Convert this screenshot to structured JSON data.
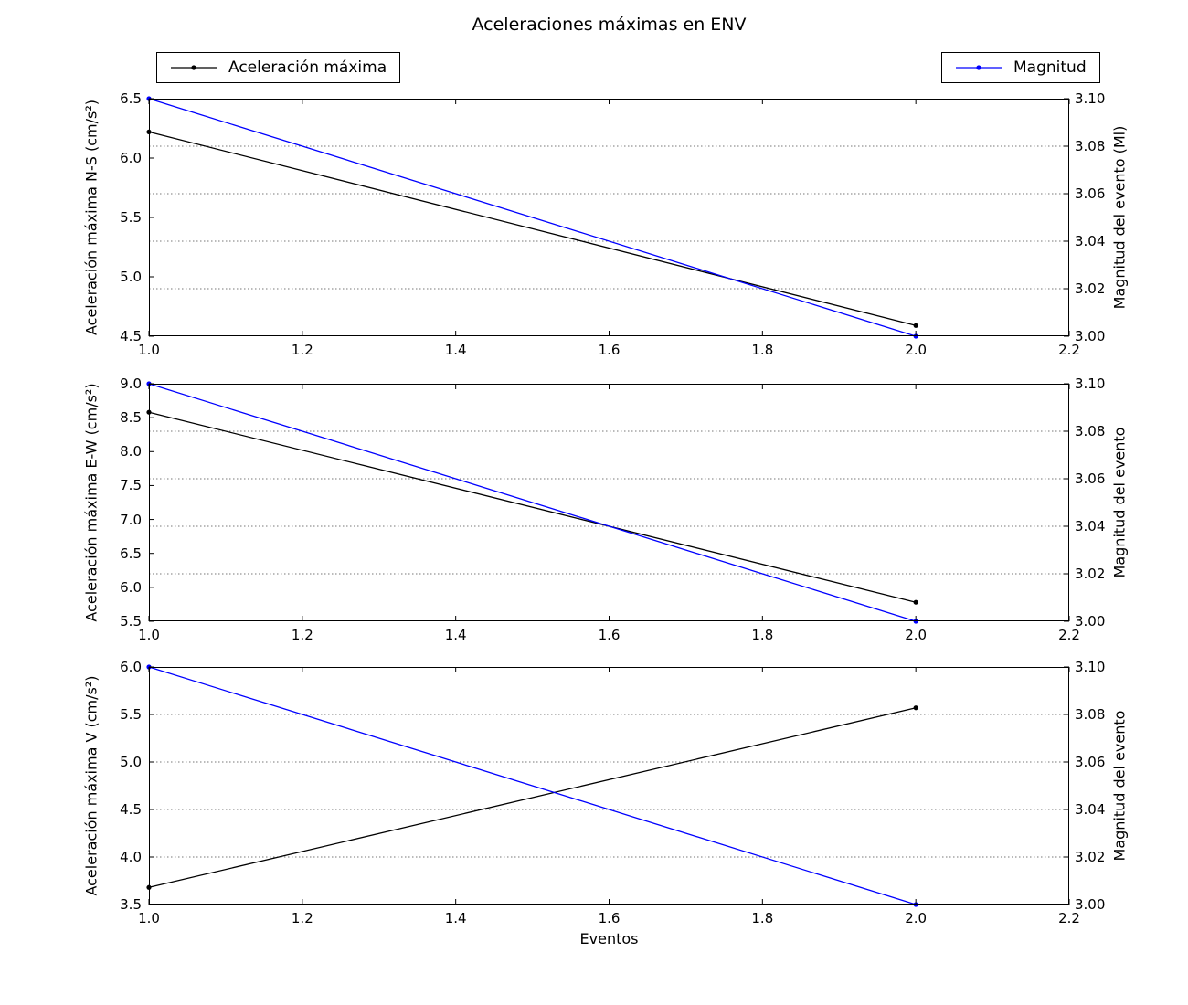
{
  "title": "Aceleraciones máximas en ENV",
  "xlabel": "Eventos",
  "x_tick_labels": [
    "1.0",
    "1.2",
    "1.4",
    "1.6",
    "1.8",
    "2.0",
    "2.2"
  ],
  "colors": {
    "acceleration": "#000000",
    "magnitude": "#0000ff",
    "grid": "#777777",
    "frame": "#000000"
  },
  "legend": [
    {
      "label": "Aceleración máxima",
      "color": "#000000"
    },
    {
      "label": "Magnitud",
      "color": "#0000ff"
    }
  ],
  "chart_data": [
    {
      "type": "line",
      "ylabel_left": "Aceleración máxima N-S (cm/s²)",
      "ylabel_right": "Magnitud del evento (Ml)",
      "xlim": [
        1.0,
        2.2
      ],
      "ylim_left": [
        4.5,
        6.5
      ],
      "ylim_right": [
        3.0,
        3.1
      ],
      "yticks_left": [
        "4.5",
        "5.0",
        "5.5",
        "6.0",
        "6.5"
      ],
      "yticks_right": [
        "3.00",
        "3.02",
        "3.04",
        "3.06",
        "3.08",
        "3.10"
      ],
      "grid_on_right_ticks": [
        3.02,
        3.04,
        3.06,
        3.08
      ],
      "x": [
        1.0,
        2.0
      ],
      "series": [
        {
          "name": "Aceleración máxima",
          "axis": "left",
          "values": [
            6.22,
            4.59
          ],
          "color": "#000000"
        },
        {
          "name": "Magnitud",
          "axis": "right",
          "values": [
            3.1,
            3.0
          ],
          "color": "#0000ff"
        }
      ]
    },
    {
      "type": "line",
      "ylabel_left": "Aceleración máxima E-W (cm/s²)",
      "ylabel_right": "Magnitud del evento",
      "xlim": [
        1.0,
        2.2
      ],
      "ylim_left": [
        5.5,
        9.0
      ],
      "ylim_right": [
        3.0,
        3.1
      ],
      "yticks_left": [
        "5.5",
        "6.0",
        "6.5",
        "7.0",
        "7.5",
        "8.0",
        "8.5",
        "9.0"
      ],
      "yticks_right": [
        "3.00",
        "3.02",
        "3.04",
        "3.06",
        "3.08",
        "3.10"
      ],
      "grid_on_right_ticks": [
        3.02,
        3.04,
        3.06,
        3.08
      ],
      "x": [
        1.0,
        2.0
      ],
      "series": [
        {
          "name": "Aceleración máxima",
          "axis": "left",
          "values": [
            8.58,
            5.78
          ],
          "color": "#000000"
        },
        {
          "name": "Magnitud",
          "axis": "right",
          "values": [
            3.1,
            3.0
          ],
          "color": "#0000ff"
        }
      ]
    },
    {
      "type": "line",
      "ylabel_left": "Aceleración máxima V (cm/s²)",
      "ylabel_right": "Magnitud del evento",
      "xlim": [
        1.0,
        2.2
      ],
      "ylim_left": [
        3.5,
        6.0
      ],
      "ylim_right": [
        3.0,
        3.1
      ],
      "yticks_left": [
        "3.5",
        "4.0",
        "4.5",
        "5.0",
        "5.5",
        "6.0"
      ],
      "yticks_right": [
        "3.00",
        "3.02",
        "3.04",
        "3.06",
        "3.08",
        "3.10"
      ],
      "grid_on_right_ticks": [
        3.02,
        3.04,
        3.06,
        3.08
      ],
      "x": [
        1.0,
        2.0
      ],
      "series": [
        {
          "name": "Aceleración máxima",
          "axis": "left",
          "values": [
            3.68,
            5.57
          ],
          "color": "#000000"
        },
        {
          "name": "Magnitud",
          "axis": "right",
          "values": [
            3.1,
            3.0
          ],
          "color": "#0000ff"
        }
      ]
    }
  ]
}
